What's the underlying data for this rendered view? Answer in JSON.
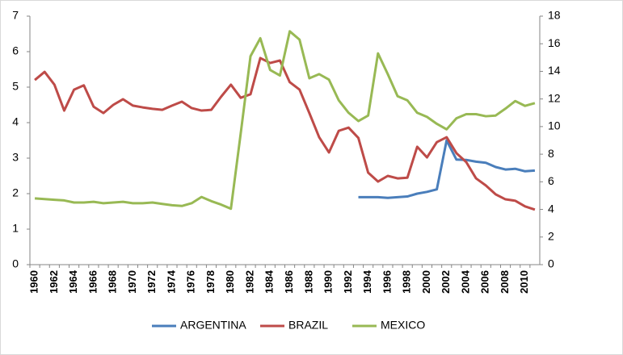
{
  "chart_data": {
    "type": "line",
    "categories": [
      "1960",
      null,
      "1962",
      null,
      "1964",
      null,
      "1966",
      null,
      "1968",
      null,
      "1970",
      null,
      "1972",
      null,
      "1974",
      null,
      "1976",
      null,
      "1978",
      null,
      "1980",
      null,
      "1982",
      null,
      "1984",
      null,
      "1986",
      null,
      "1988",
      null,
      "1990",
      null,
      "1992",
      null,
      "1994",
      null,
      "1996",
      null,
      "1998",
      null,
      "2000",
      null,
      "2002",
      null,
      "2004",
      null,
      "2006",
      null,
      "2008",
      null,
      "2010",
      null
    ],
    "series": [
      {
        "name": "ARGENTINA",
        "color": "#4a7ebb",
        "axis": "y",
        "values": [
          null,
          null,
          null,
          null,
          null,
          null,
          null,
          null,
          null,
          null,
          null,
          null,
          null,
          null,
          null,
          null,
          null,
          null,
          null,
          null,
          null,
          null,
          null,
          null,
          null,
          null,
          null,
          null,
          null,
          null,
          null,
          null,
          null,
          1.9,
          1.9,
          1.9,
          1.88,
          1.9,
          1.92,
          2.0,
          2.05,
          2.12,
          3.5,
          2.96,
          2.95,
          2.9,
          2.87,
          2.75,
          2.68,
          2.7,
          2.63,
          2.65
        ]
      },
      {
        "name": "BRAZIL",
        "color": "#be4b48",
        "axis": "y",
        "values": [
          5.2,
          5.43,
          5.07,
          4.34,
          4.93,
          5.05,
          4.45,
          4.27,
          4.5,
          4.66,
          4.48,
          4.43,
          4.39,
          4.36,
          4.48,
          4.59,
          4.41,
          4.34,
          4.36,
          4.73,
          5.07,
          4.7,
          4.8,
          5.82,
          5.68,
          5.75,
          5.14,
          4.93,
          4.27,
          3.59,
          3.16,
          3.77,
          3.86,
          3.57,
          2.59,
          2.34,
          2.5,
          2.43,
          2.45,
          3.32,
          3.02,
          3.45,
          3.59,
          3.14,
          2.89,
          2.43,
          2.23,
          1.98,
          1.84,
          1.8,
          1.64,
          1.55
        ]
      },
      {
        "name": "MEXICO",
        "color": "#98b954",
        "axis": "y2",
        "values": [
          4.8,
          4.75,
          4.7,
          4.65,
          4.5,
          4.5,
          4.55,
          4.45,
          4.5,
          4.55,
          4.45,
          4.45,
          4.5,
          4.4,
          4.3,
          4.25,
          4.45,
          4.9,
          4.6,
          4.35,
          4.05,
          9.5,
          15.1,
          16.4,
          14.1,
          13.7,
          16.9,
          16.3,
          13.5,
          13.8,
          13.4,
          11.9,
          11.0,
          10.4,
          10.8,
          15.3,
          13.8,
          12.2,
          11.9,
          11.0,
          10.7,
          10.2,
          9.8,
          10.6,
          10.9,
          10.9,
          10.75,
          10.8,
          11.3,
          11.85,
          11.5,
          11.7
        ]
      }
    ],
    "ylim": [
      0,
      7
    ],
    "yticks": [
      0,
      1,
      2,
      3,
      4,
      5,
      6,
      7
    ],
    "y2lim": [
      0,
      18
    ],
    "y2ticks": [
      0,
      2,
      4,
      6,
      8,
      10,
      12,
      14,
      16,
      18
    ],
    "grid": false,
    "legend": "bottom"
  }
}
